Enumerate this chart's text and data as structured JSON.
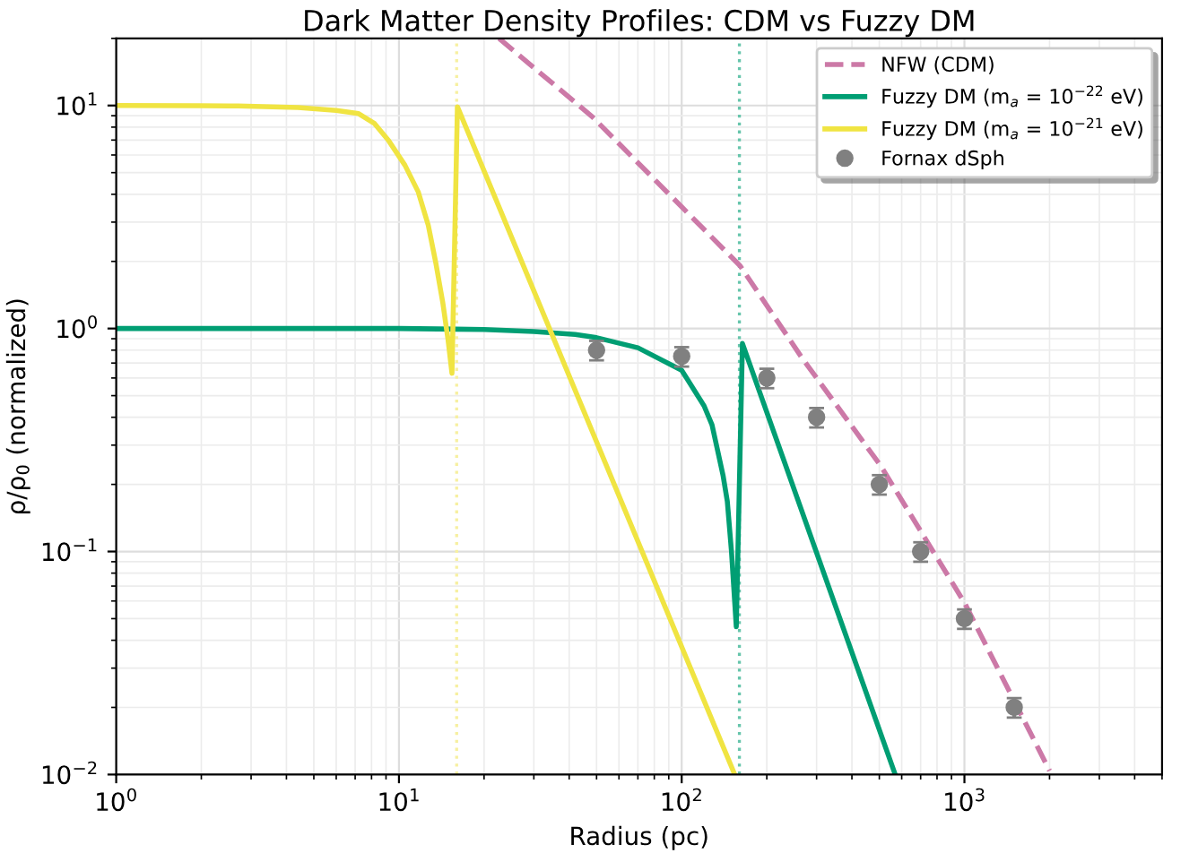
{
  "chart_data": {
    "type": "line",
    "title": "Dark Matter Density Profiles: CDM vs Fuzzy DM",
    "xlabel": "Radius (pc)",
    "ylabel": "ρ/ρ$_{0}$ (normalized)",
    "log": "xy",
    "xlim": [
      1,
      5000
    ],
    "ylim": [
      0.01,
      20
    ],
    "xticks": [
      {
        "value": 1,
        "label": "10$^{0}$"
      },
      {
        "value": 10,
        "label": "10$^{1}$"
      },
      {
        "value": 100,
        "label": "10$^{2}$"
      },
      {
        "value": 1000,
        "label": "10$^{3}$"
      }
    ],
    "yticks": [
      {
        "value": 0.01,
        "label": "10$^{−2}$"
      },
      {
        "value": 0.1,
        "label": "10$^{−1}$"
      },
      {
        "value": 1,
        "label": "10$^{0}$"
      },
      {
        "value": 10,
        "label": "10$^{1}$"
      }
    ],
    "grid": true,
    "legend": "top right",
    "series": [
      {
        "name": "NFW (CDM)",
        "color": "#cc79a7",
        "line_style": "dashed",
        "marker": "none",
        "x": [
          22.6,
          48.3,
          161,
          267,
          505,
          1000,
          2000
        ],
        "values": [
          20,
          8.9,
          1.91,
          0.735,
          0.243,
          0.059,
          0.0104
        ]
      },
      {
        "name": "Fuzzy DM (m$_{a}$ = 10$^{−22}$ eV)",
        "color": "#009e73",
        "line_style": "solid",
        "marker": "none",
        "x": [
          1,
          10,
          20,
          30,
          42,
          50,
          70,
          100,
          120,
          128,
          140,
          145,
          150,
          156,
          164,
          569
        ],
        "values": [
          1.0,
          1.0,
          0.99,
          0.97,
          0.94,
          0.91,
          0.82,
          0.65,
          0.45,
          0.37,
          0.22,
          0.168,
          0.1,
          0.046,
          0.857,
          0.01
        ]
      },
      {
        "name": "Fuzzy DM (m$_{a}$ = 10$^{−21}$ eV)",
        "color": "#f0e442",
        "line_style": "solid",
        "marker": "none",
        "x": [
          1,
          2,
          2.7,
          4.4,
          6,
          7.2,
          8.2,
          9.2,
          10.5,
          11.7,
          12.7,
          13.5,
          14.3,
          14.9,
          15.4,
          16.1,
          154
        ],
        "values": [
          10,
          9.97,
          9.95,
          9.8,
          9.5,
          9.2,
          8.3,
          6.95,
          5.4,
          4.1,
          2.9,
          1.97,
          1.3,
          0.9,
          0.63,
          9.87,
          0.01
        ]
      },
      {
        "name": "Fornax dSph",
        "type": "scatter",
        "color": "#808080",
        "marker": "circle",
        "x": [
          50,
          100,
          200,
          300,
          500,
          700,
          1000,
          1500
        ],
        "values": [
          0.8,
          0.75,
          0.6,
          0.4,
          0.2,
          0.1,
          0.05,
          0.02
        ],
        "errors": [
          0.08,
          0.075,
          0.06,
          0.04,
          0.02,
          0.01,
          0.005,
          0.002
        ]
      }
    ],
    "ref_lines": [
      {
        "axis": "x",
        "value": 16,
        "color": "#f7f0a0",
        "line_style": "dotted"
      },
      {
        "axis": "x",
        "value": 160,
        "color": "#66c5ab",
        "line_style": "dotted"
      }
    ]
  }
}
